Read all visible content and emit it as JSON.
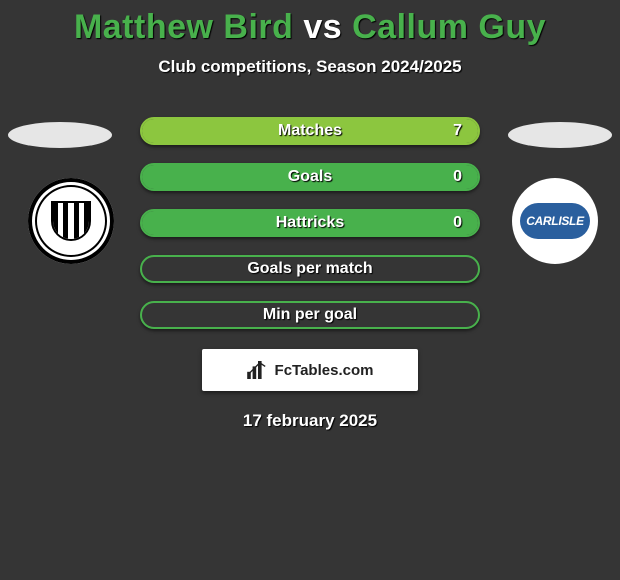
{
  "header": {
    "player1": "Matthew Bird",
    "vs": "vs",
    "player2": "Callum Guy",
    "subtitle": "Club competitions, Season 2024/2025",
    "title_color": "#48b14c"
  },
  "rows": [
    {
      "label": "Matches",
      "value_right": "7",
      "fill_pct": 100,
      "border": "#8cc63f",
      "fill": "#8cc63f"
    },
    {
      "label": "Goals",
      "value_right": "0",
      "fill_pct": 100,
      "border": "#48b14c",
      "fill": "#48b14c"
    },
    {
      "label": "Hattricks",
      "value_right": "0",
      "fill_pct": 100,
      "border": "#48b14c",
      "fill": "#48b14c"
    },
    {
      "label": "Goals per match",
      "value_right": "",
      "fill_pct": 0,
      "border": "#48b14c",
      "fill": "#48b14c"
    },
    {
      "label": "Min per goal",
      "value_right": "",
      "fill_pct": 0,
      "border": "#48b14c",
      "fill": "#48b14c"
    }
  ],
  "badges": {
    "left": {
      "name": "grimsby-town-badge"
    },
    "right": {
      "name": "carlisle-badge",
      "text": "CARLISLE",
      "bg": "#2a5f9e"
    }
  },
  "attribution": {
    "text": "FcTables.com"
  },
  "date": "17 february 2025",
  "colors": {
    "background": "#353535",
    "oval": "#e6e6e6",
    "text": "#ffffff"
  }
}
